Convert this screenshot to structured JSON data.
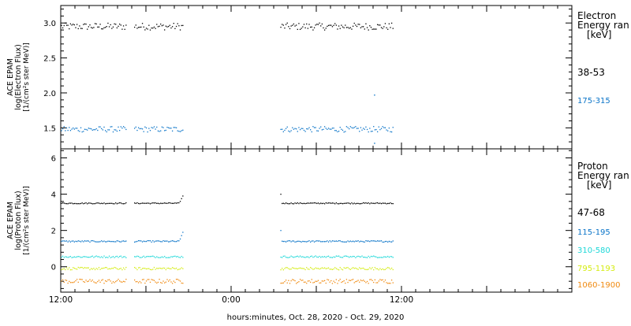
{
  "chart_data": [
    {
      "type": "scatter",
      "ylabel_lines": [
        "ACE EPAM",
        "log(Electron Flux)",
        "[1/(cm²s ster MeV)]"
      ],
      "ylim": [
        1.2,
        3.25
      ],
      "yticks": [
        "1.5",
        "2.0",
        "2.5",
        "3.0"
      ],
      "legend_title": [
        "Electron",
        "Energy ran",
        "[keV]"
      ],
      "series": [
        {
          "name": "38-53",
          "color": "#000000",
          "level": 2.95,
          "noise": 0.05
        },
        {
          "name": "175-315",
          "color": "#0a74c8",
          "level": 1.48,
          "noise": 0.04
        }
      ],
      "gaps": [
        {
          "hour": 22.1,
          "series": 1,
          "y": 1.97
        },
        {
          "hour": 22.1,
          "series": 1,
          "y": 1.28
        }
      ]
    },
    {
      "type": "scatter",
      "ylabel_lines": [
        "ACE EPAM",
        "log(Proton Flux)",
        "[1/(cm²s ster MeV)]"
      ],
      "ylim": [
        -1.4,
        6.5
      ],
      "yticks": [
        "0",
        "2",
        "4",
        "6"
      ],
      "legend_title": [
        "Proton",
        "Energy ran",
        "[keV]"
      ],
      "series": [
        {
          "name": "47-68",
          "color": "#000000",
          "level": 3.5,
          "noise": 0.03,
          "rise_to": 3.9
        },
        {
          "name": "115-195",
          "color": "#0a74c8",
          "level": 1.4,
          "noise": 0.04,
          "rise_to": 1.9
        },
        {
          "name": "310-580",
          "color": "#1dd8d8",
          "level": 0.55,
          "noise": 0.05
        },
        {
          "name": "795-1193",
          "color": "#d4ec10",
          "level": -0.1,
          "noise": 0.07
        },
        {
          "name": "1060-1900",
          "color": "#f08a10",
          "level": -0.8,
          "noise": 0.12
        }
      ]
    }
  ],
  "x_axis": {
    "hour_start": 0,
    "hour_end": 36,
    "ticks": [
      {
        "hour": 0,
        "label": "12:00"
      },
      {
        "hour": 12,
        "label": "0:00"
      },
      {
        "hour": 24,
        "label": "12:00"
      }
    ],
    "minor_every_hours": 1,
    "segments": [
      [
        0.05,
        4.6
      ],
      [
        5.2,
        8.6
      ],
      [
        15.5,
        23.4
      ]
    ],
    "xlabel": "hours:minutes, Oct. 28, 2020 - Oct. 29, 2020"
  }
}
